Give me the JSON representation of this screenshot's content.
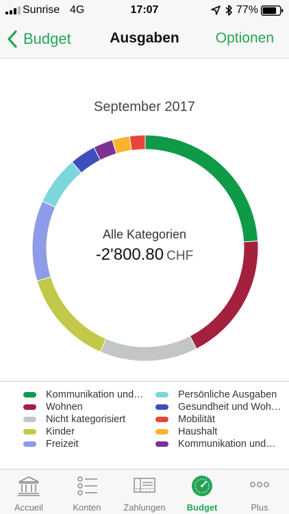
{
  "status_bar": {
    "carrier": "Sunrise",
    "network": "4G",
    "time": "17:07",
    "battery": "77%",
    "icons": [
      "signal-icon",
      "location-icon",
      "bluetooth-icon",
      "battery-icon"
    ]
  },
  "nav": {
    "back_label": "Budget",
    "title": "Ausgaben",
    "options_label": "Optionen",
    "accent_color": "#23a455"
  },
  "summary": {
    "month": "September 2017",
    "category_label": "Alle Kategorien",
    "amount": "-2'800.80",
    "currency": "CHF"
  },
  "legend": {
    "items": [
      {
        "label": "Kommunikation und…",
        "color": "#0f9a48"
      },
      {
        "label": "Persönliche Ausgaben",
        "color": "#7ed6dc"
      },
      {
        "label": "Wohnen",
        "color": "#a4203f"
      },
      {
        "label": "Gesundheit und Woh…",
        "color": "#3d4fbd"
      },
      {
        "label": "Nicht kategorisiert",
        "color": "#c2c6c7"
      },
      {
        "label": "Mobilität",
        "color": "#e8463b"
      },
      {
        "label": "Kinder",
        "color": "#c2c849"
      },
      {
        "label": "Haushalt",
        "color": "#f9b42c"
      },
      {
        "label": "Freizeit",
        "color": "#8f9ae8"
      },
      {
        "label": "Kommunikation und…",
        "color": "#7c3293"
      }
    ]
  },
  "chart_data": {
    "type": "pie",
    "title": "September 2017",
    "unit": "percent of total spending (estimated)",
    "slices": [
      {
        "name": "Kommunikation und…",
        "value": 24.0,
        "color": "#0f9a48"
      },
      {
        "name": "Wohnen",
        "value": 18.5,
        "color": "#a4203f"
      },
      {
        "name": "Nicht kategorisiert",
        "value": 14.0,
        "color": "#c2c6c7"
      },
      {
        "name": "Kinder",
        "value": 13.8,
        "color": "#c2c849"
      },
      {
        "name": "Freizeit",
        "value": 11.5,
        "color": "#8f9ae8"
      },
      {
        "name": "Persönliche Ausgaben",
        "value": 7.0,
        "color": "#7ed6dc"
      },
      {
        "name": "Gesundheit und Woh…",
        "value": 3.7,
        "color": "#3d4fbd"
      },
      {
        "name": "Kommunikation und…",
        "value": 2.8,
        "color": "#7c3293"
      },
      {
        "name": "Haushalt",
        "value": 2.5,
        "color": "#f9b42c"
      },
      {
        "name": "Mobilität",
        "value": 2.2,
        "color": "#e8463b"
      }
    ]
  },
  "tabs": [
    {
      "label": "Accueil",
      "icon": "bank-icon",
      "active": false
    },
    {
      "label": "Konten",
      "icon": "list-icon",
      "active": false
    },
    {
      "label": "Zahlungen",
      "icon": "payment-slip-icon",
      "active": false
    },
    {
      "label": "Budget",
      "icon": "gauge-icon",
      "active": true
    },
    {
      "label": "Plus",
      "icon": "more-icon",
      "active": false
    }
  ]
}
